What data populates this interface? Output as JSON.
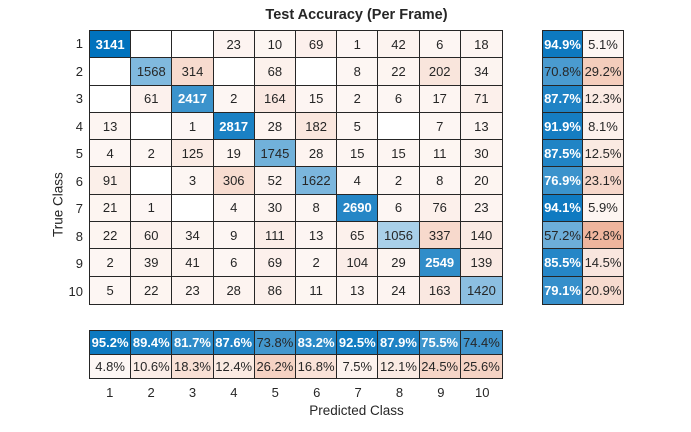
{
  "chart_data": {
    "type": "heatmap",
    "subtype": "confusion-matrix",
    "title": "Test Accuracy (Per Frame)",
    "xlabel": "Predicted Class",
    "ylabel": "True Class",
    "classes": [
      "1",
      "2",
      "3",
      "4",
      "5",
      "6",
      "7",
      "8",
      "9",
      "10"
    ],
    "matrix": [
      [
        3141,
        null,
        null,
        23,
        10,
        69,
        1,
        42,
        6,
        18
      ],
      [
        null,
        1568,
        314,
        null,
        68,
        null,
        8,
        22,
        202,
        34
      ],
      [
        null,
        61,
        2417,
        2,
        164,
        15,
        2,
        6,
        17,
        71
      ],
      [
        13,
        null,
        1,
        2817,
        28,
        182,
        5,
        null,
        7,
        13
      ],
      [
        4,
        2,
        125,
        19,
        1745,
        28,
        15,
        15,
        11,
        30
      ],
      [
        91,
        null,
        3,
        306,
        52,
        1622,
        4,
        2,
        8,
        20
      ],
      [
        21,
        1,
        null,
        4,
        30,
        8,
        2690,
        6,
        76,
        23
      ],
      [
        22,
        60,
        34,
        9,
        111,
        13,
        65,
        1056,
        337,
        140
      ],
      [
        2,
        39,
        41,
        6,
        69,
        2,
        104,
        29,
        2549,
        139
      ],
      [
        5,
        22,
        23,
        28,
        86,
        11,
        13,
        24,
        163,
        1420
      ]
    ],
    "row_summary": {
      "correct_pct": [
        94.9,
        70.8,
        87.7,
        91.9,
        87.5,
        76.9,
        94.1,
        57.2,
        85.5,
        79.1
      ],
      "incorrect_pct": [
        5.1,
        29.2,
        12.3,
        8.1,
        12.5,
        23.1,
        5.9,
        42.8,
        14.5,
        20.9
      ]
    },
    "col_summary": {
      "correct_pct": [
        95.2,
        89.4,
        81.7,
        87.6,
        73.8,
        83.2,
        92.5,
        87.9,
        75.5,
        74.4
      ],
      "incorrect_pct": [
        4.8,
        10.6,
        18.3,
        12.4,
        26.2,
        16.8,
        7.5,
        12.1,
        24.5,
        25.6
      ]
    },
    "colors": {
      "diagonal": "#0072BD",
      "off_diagonal": "#D95319",
      "grid_line": "#262626",
      "text_dark": "#262626",
      "text_light": "#FFFFFF",
      "background": "#FFFFFF"
    }
  }
}
